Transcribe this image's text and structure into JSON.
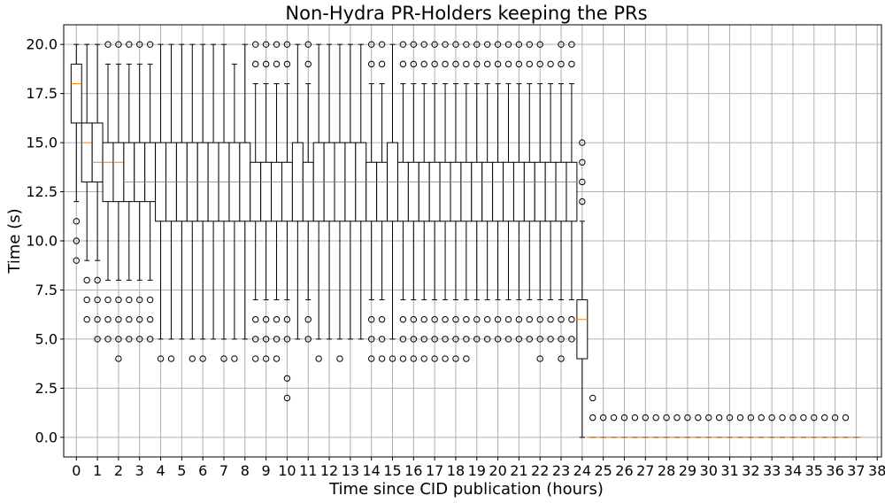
{
  "chart_data": {
    "type": "box",
    "title": "Non-Hydra PR-Holders keeping the PRs",
    "xlabel": "Time since CID publication (hours)",
    "ylabel": "Time (s)",
    "xlim": [
      -0.6,
      38.2
    ],
    "ylim": [
      -1.0,
      21.0
    ],
    "x_ticks": [
      0,
      1,
      2,
      3,
      4,
      5,
      6,
      7,
      8,
      9,
      10,
      11,
      12,
      13,
      14,
      15,
      16,
      17,
      18,
      19,
      20,
      21,
      22,
      23,
      24,
      25,
      26,
      27,
      28,
      29,
      30,
      31,
      32,
      33,
      34,
      35,
      36,
      37,
      38
    ],
    "y_ticks": [
      "0.0",
      "2.5",
      "5.0",
      "7.5",
      "10.0",
      "12.5",
      "15.0",
      "17.5",
      "20.0"
    ],
    "grid": true,
    "box_width": 0.5,
    "boxes": [
      {
        "x": 0.0,
        "whislo": 12,
        "q1": 16,
        "med": 18,
        "q3": 19,
        "whishi": 20,
        "fliers": [
          11,
          10,
          9
        ]
      },
      {
        "x": 0.5,
        "whislo": 9,
        "q1": 13,
        "med": 15,
        "q3": 16,
        "whishi": 20,
        "fliers": [
          8,
          7,
          6
        ]
      },
      {
        "x": 1.0,
        "whislo": 9,
        "q1": 13,
        "med": 14,
        "q3": 16,
        "whishi": 20,
        "fliers": [
          8,
          7,
          6,
          5
        ]
      },
      {
        "x": 1.5,
        "whislo": 8,
        "q1": 12,
        "med": 14,
        "q3": 15,
        "whishi": 19,
        "fliers": [
          20,
          7,
          6,
          5
        ]
      },
      {
        "x": 2.0,
        "whislo": 8,
        "q1": 12,
        "med": 14,
        "q3": 15,
        "whishi": 19,
        "fliers": [
          20,
          7,
          6,
          5,
          4
        ]
      },
      {
        "x": 2.5,
        "whislo": 8,
        "q1": 12,
        "med": 13,
        "q3": 15,
        "whishi": 19,
        "fliers": [
          20,
          7,
          6,
          5
        ]
      },
      {
        "x": 3.0,
        "whislo": 8,
        "q1": 12,
        "med": 13,
        "q3": 15,
        "whishi": 19,
        "fliers": [
          20,
          7,
          6,
          5
        ]
      },
      {
        "x": 3.5,
        "whislo": 8,
        "q1": 12,
        "med": 13,
        "q3": 15,
        "whishi": 19,
        "fliers": [
          20,
          7,
          6,
          5
        ]
      },
      {
        "x": 4.0,
        "whislo": 5,
        "q1": 11,
        "med": 13,
        "q3": 15,
        "whishi": 20,
        "fliers": [
          4
        ]
      },
      {
        "x": 4.5,
        "whislo": 5,
        "q1": 11,
        "med": 13,
        "q3": 15,
        "whishi": 20,
        "fliers": [
          4
        ]
      },
      {
        "x": 5.0,
        "whislo": 5,
        "q1": 11,
        "med": 13,
        "q3": 15,
        "whishi": 20,
        "fliers": []
      },
      {
        "x": 5.5,
        "whislo": 5,
        "q1": 11,
        "med": 13,
        "q3": 15,
        "whishi": 20,
        "fliers": [
          4
        ]
      },
      {
        "x": 6.0,
        "whislo": 5,
        "q1": 11,
        "med": 13,
        "q3": 15,
        "whishi": 20,
        "fliers": [
          4
        ]
      },
      {
        "x": 6.5,
        "whislo": 5,
        "q1": 11,
        "med": 13,
        "q3": 15,
        "whishi": 20,
        "fliers": []
      },
      {
        "x": 7.0,
        "whislo": 5,
        "q1": 11,
        "med": 13,
        "q3": 15,
        "whishi": 20,
        "fliers": [
          4
        ]
      },
      {
        "x": 7.5,
        "whislo": 5,
        "q1": 11,
        "med": 13,
        "q3": 15,
        "whishi": 19,
        "fliers": [
          4
        ]
      },
      {
        "x": 8.0,
        "whislo": 5,
        "q1": 11,
        "med": 13,
        "q3": 15,
        "whishi": 20,
        "fliers": []
      },
      {
        "x": 8.5,
        "whislo": 7,
        "q1": 11,
        "med": 13,
        "q3": 14,
        "whishi": 18,
        "fliers": [
          20,
          19,
          6,
          5,
          4
        ]
      },
      {
        "x": 9.0,
        "whislo": 7,
        "q1": 11,
        "med": 13,
        "q3": 14,
        "whishi": 18,
        "fliers": [
          20,
          19,
          6,
          5,
          4
        ]
      },
      {
        "x": 9.5,
        "whislo": 7,
        "q1": 11,
        "med": 13,
        "q3": 14,
        "whishi": 18,
        "fliers": [
          20,
          19,
          6,
          5,
          4
        ]
      },
      {
        "x": 10.0,
        "whislo": 7,
        "q1": 11,
        "med": 13,
        "q3": 14,
        "whishi": 18,
        "fliers": [
          20,
          19,
          6,
          5,
          3,
          2
        ]
      },
      {
        "x": 10.5,
        "whislo": 5,
        "q1": 11,
        "med": 13,
        "q3": 15,
        "whishi": 20,
        "fliers": []
      },
      {
        "x": 11.0,
        "whislo": 7,
        "q1": 11,
        "med": 13,
        "q3": 14,
        "whishi": 18,
        "fliers": [
          20,
          19,
          6,
          5
        ]
      },
      {
        "x": 11.5,
        "whislo": 5,
        "q1": 11,
        "med": 13,
        "q3": 15,
        "whishi": 20,
        "fliers": [
          4
        ]
      },
      {
        "x": 12.0,
        "whislo": 5,
        "q1": 11,
        "med": 13,
        "q3": 15,
        "whishi": 20,
        "fliers": []
      },
      {
        "x": 12.5,
        "whislo": 5,
        "q1": 11,
        "med": 13,
        "q3": 15,
        "whishi": 20,
        "fliers": [
          4
        ]
      },
      {
        "x": 13.0,
        "whislo": 5,
        "q1": 11,
        "med": 13,
        "q3": 15,
        "whishi": 20,
        "fliers": []
      },
      {
        "x": 13.5,
        "whislo": 5,
        "q1": 11,
        "med": 13,
        "q3": 15,
        "whishi": 20,
        "fliers": []
      },
      {
        "x": 14.0,
        "whislo": 7,
        "q1": 11,
        "med": 13,
        "q3": 14,
        "whishi": 18,
        "fliers": [
          20,
          19,
          6,
          5,
          4
        ]
      },
      {
        "x": 14.5,
        "whislo": 7,
        "q1": 11,
        "med": 13,
        "q3": 14,
        "whishi": 18,
        "fliers": [
          20,
          19,
          6,
          5,
          4
        ]
      },
      {
        "x": 15.0,
        "whislo": 5,
        "q1": 11,
        "med": 13,
        "q3": 15,
        "whishi": 20,
        "fliers": [
          4
        ]
      },
      {
        "x": 15.5,
        "whislo": 7,
        "q1": 11,
        "med": 13,
        "q3": 14,
        "whishi": 18,
        "fliers": [
          20,
          19,
          6,
          5,
          4
        ]
      },
      {
        "x": 16.0,
        "whislo": 7,
        "q1": 11,
        "med": 13,
        "q3": 14,
        "whishi": 18,
        "fliers": [
          20,
          19,
          6,
          5,
          4
        ]
      },
      {
        "x": 16.5,
        "whislo": 7,
        "q1": 11,
        "med": 13,
        "q3": 14,
        "whishi": 18,
        "fliers": [
          20,
          19,
          6,
          5,
          4
        ]
      },
      {
        "x": 17.0,
        "whislo": 7,
        "q1": 11,
        "med": 13,
        "q3": 14,
        "whishi": 18,
        "fliers": [
          20,
          19,
          6,
          5,
          4
        ]
      },
      {
        "x": 17.5,
        "whislo": 7,
        "q1": 11,
        "med": 13,
        "q3": 14,
        "whishi": 18,
        "fliers": [
          20,
          19,
          6,
          5,
          4
        ]
      },
      {
        "x": 18.0,
        "whislo": 7,
        "q1": 11,
        "med": 13,
        "q3": 14,
        "whishi": 18,
        "fliers": [
          20,
          19,
          6,
          5,
          4
        ]
      },
      {
        "x": 18.5,
        "whislo": 7,
        "q1": 11,
        "med": 13,
        "q3": 14,
        "whishi": 18,
        "fliers": [
          20,
          19,
          6,
          5,
          4
        ]
      },
      {
        "x": 19.0,
        "whislo": 7,
        "q1": 11,
        "med": 13,
        "q3": 14,
        "whishi": 18,
        "fliers": [
          20,
          19,
          6,
          5
        ]
      },
      {
        "x": 19.5,
        "whislo": 7,
        "q1": 11,
        "med": 13,
        "q3": 14,
        "whishi": 18,
        "fliers": [
          20,
          19,
          6,
          5
        ]
      },
      {
        "x": 20.0,
        "whislo": 7,
        "q1": 11,
        "med": 13,
        "q3": 14,
        "whishi": 18,
        "fliers": [
          20,
          19,
          6,
          5
        ]
      },
      {
        "x": 20.5,
        "whislo": 7,
        "q1": 11,
        "med": 13,
        "q3": 14,
        "whishi": 18,
        "fliers": [
          20,
          19,
          6,
          5
        ]
      },
      {
        "x": 21.0,
        "whislo": 7,
        "q1": 11,
        "med": 13,
        "q3": 14,
        "whishi": 18,
        "fliers": [
          20,
          19,
          6,
          5
        ]
      },
      {
        "x": 21.5,
        "whislo": 7,
        "q1": 11,
        "med": 13,
        "q3": 14,
        "whishi": 18,
        "fliers": [
          20,
          19,
          6,
          5
        ]
      },
      {
        "x": 22.0,
        "whislo": 7,
        "q1": 11,
        "med": 13,
        "q3": 14,
        "whishi": 18,
        "fliers": [
          20,
          19,
          6,
          5,
          4
        ]
      },
      {
        "x": 22.5,
        "whislo": 7,
        "q1": 11,
        "med": 13,
        "q3": 14,
        "whishi": 18,
        "fliers": [
          19,
          6,
          5
        ]
      },
      {
        "x": 23.0,
        "whislo": 7,
        "q1": 11,
        "med": 13,
        "q3": 14,
        "whishi": 18,
        "fliers": [
          20,
          19,
          6,
          5,
          4
        ]
      },
      {
        "x": 23.5,
        "whislo": 7,
        "q1": 11,
        "med": 13,
        "q3": 14,
        "whishi": 18,
        "fliers": [
          20,
          19,
          6,
          5
        ]
      },
      {
        "x": 24.0,
        "whislo": 0,
        "q1": 4,
        "med": 6,
        "q3": 7,
        "whishi": 11,
        "fliers": [
          15,
          14,
          13,
          12
        ]
      },
      {
        "x": 24.5,
        "whislo": 0,
        "q1": 0,
        "med": 0,
        "q3": 0,
        "whishi": 0,
        "fliers": [
          2,
          1
        ]
      },
      {
        "x": 25.0,
        "whislo": 0,
        "q1": 0,
        "med": 0,
        "q3": 0,
        "whishi": 0,
        "fliers": [
          1
        ]
      },
      {
        "x": 25.5,
        "whislo": 0,
        "q1": 0,
        "med": 0,
        "q3": 0,
        "whishi": 0,
        "fliers": [
          1
        ]
      },
      {
        "x": 26.0,
        "whislo": 0,
        "q1": 0,
        "med": 0,
        "q3": 0,
        "whishi": 0,
        "fliers": [
          1
        ]
      },
      {
        "x": 26.5,
        "whislo": 0,
        "q1": 0,
        "med": 0,
        "q3": 0,
        "whishi": 0,
        "fliers": [
          1
        ]
      },
      {
        "x": 27.0,
        "whislo": 0,
        "q1": 0,
        "med": 0,
        "q3": 0,
        "whishi": 0,
        "fliers": [
          1
        ]
      },
      {
        "x": 27.5,
        "whislo": 0,
        "q1": 0,
        "med": 0,
        "q3": 0,
        "whishi": 0,
        "fliers": [
          1
        ]
      },
      {
        "x": 28.0,
        "whislo": 0,
        "q1": 0,
        "med": 0,
        "q3": 0,
        "whishi": 0,
        "fliers": [
          1
        ]
      },
      {
        "x": 28.5,
        "whislo": 0,
        "q1": 0,
        "med": 0,
        "q3": 0,
        "whishi": 0,
        "fliers": [
          1
        ]
      },
      {
        "x": 29.0,
        "whislo": 0,
        "q1": 0,
        "med": 0,
        "q3": 0,
        "whishi": 0,
        "fliers": [
          1
        ]
      },
      {
        "x": 29.5,
        "whislo": 0,
        "q1": 0,
        "med": 0,
        "q3": 0,
        "whishi": 0,
        "fliers": [
          1
        ]
      },
      {
        "x": 30.0,
        "whislo": 0,
        "q1": 0,
        "med": 0,
        "q3": 0,
        "whishi": 0,
        "fliers": [
          1
        ]
      },
      {
        "x": 30.5,
        "whislo": 0,
        "q1": 0,
        "med": 0,
        "q3": 0,
        "whishi": 0,
        "fliers": [
          1
        ]
      },
      {
        "x": 31.0,
        "whislo": 0,
        "q1": 0,
        "med": 0,
        "q3": 0,
        "whishi": 0,
        "fliers": [
          1
        ]
      },
      {
        "x": 31.5,
        "whislo": 0,
        "q1": 0,
        "med": 0,
        "q3": 0,
        "whishi": 0,
        "fliers": [
          1
        ]
      },
      {
        "x": 32.0,
        "whislo": 0,
        "q1": 0,
        "med": 0,
        "q3": 0,
        "whishi": 0,
        "fliers": [
          1
        ]
      },
      {
        "x": 32.5,
        "whislo": 0,
        "q1": 0,
        "med": 0,
        "q3": 0,
        "whishi": 0,
        "fliers": [
          1
        ]
      },
      {
        "x": 33.0,
        "whislo": 0,
        "q1": 0,
        "med": 0,
        "q3": 0,
        "whishi": 0,
        "fliers": [
          1
        ]
      },
      {
        "x": 33.5,
        "whislo": 0,
        "q1": 0,
        "med": 0,
        "q3": 0,
        "whishi": 0,
        "fliers": [
          1
        ]
      },
      {
        "x": 34.0,
        "whislo": 0,
        "q1": 0,
        "med": 0,
        "q3": 0,
        "whishi": 0,
        "fliers": [
          1
        ]
      },
      {
        "x": 34.5,
        "whislo": 0,
        "q1": 0,
        "med": 0,
        "q3": 0,
        "whishi": 0,
        "fliers": [
          1
        ]
      },
      {
        "x": 35.0,
        "whislo": 0,
        "q1": 0,
        "med": 0,
        "q3": 0,
        "whishi": 0,
        "fliers": [
          1
        ]
      },
      {
        "x": 35.5,
        "whislo": 0,
        "q1": 0,
        "med": 0,
        "q3": 0,
        "whishi": 0,
        "fliers": [
          1
        ]
      },
      {
        "x": 36.0,
        "whislo": 0,
        "q1": 0,
        "med": 0,
        "q3": 0,
        "whishi": 0,
        "fliers": [
          1
        ]
      },
      {
        "x": 36.5,
        "whislo": 0,
        "q1": 0,
        "med": 0,
        "q3": 0,
        "whishi": 0,
        "fliers": [
          1
        ]
      },
      {
        "x": 37.0,
        "whislo": 0,
        "q1": 0,
        "med": 0,
        "q3": 0,
        "whishi": 0,
        "fliers": []
      }
    ],
    "colors": {
      "box": "#000000",
      "median": "#ff7f0e",
      "grid": "#b0b0b0"
    }
  }
}
